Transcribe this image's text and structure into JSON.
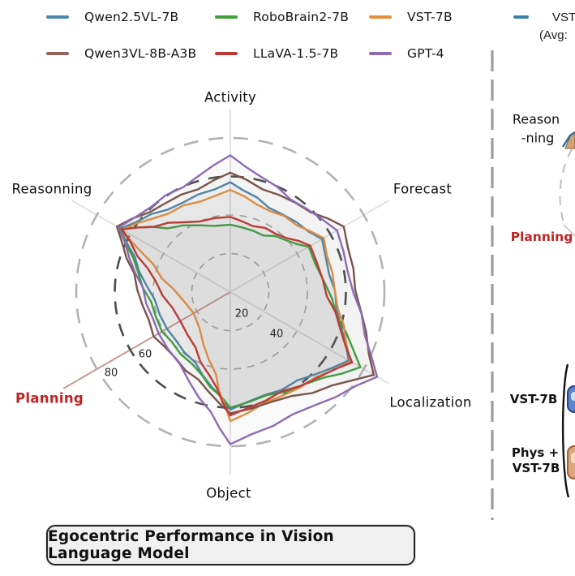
{
  "legend": {
    "items": [
      {
        "label": "Qwen2.5VL-7B",
        "color": "#4d87ad"
      },
      {
        "label": "RoboBrain2-7B",
        "color": "#3ba23b"
      },
      {
        "label": "VST-7B",
        "color": "#e69140"
      },
      {
        "label": "Qwen3VL-8B-A3B",
        "color": "#91655a"
      },
      {
        "label": "LLaVA-1.5-7B",
        "color": "#bf3a34"
      },
      {
        "label": "GPT-4",
        "color": "#8d6cb4"
      }
    ],
    "partial": {
      "label": "VST",
      "sub": "(Avg:",
      "color": "#3b7fa6"
    }
  },
  "chart_data": {
    "type": "radar",
    "title": "Egocentric Performance in Vision Language Model",
    "axes": [
      "Activity",
      "Forecast",
      "Localization",
      "Object",
      "Planning",
      "Reasonning"
    ],
    "radial_ticks": [
      20,
      40,
      60,
      80
    ],
    "scale_max": 100,
    "grid": "dashed-circles",
    "legend_position": "top",
    "highlighted_axis": "Planning",
    "series": [
      {
        "name": "Qwen2.5VL-7B",
        "color": "#4d87ad",
        "values": [
          57,
          55,
          71,
          61,
          38,
          66
        ]
      },
      {
        "name": "RoboBrain2-7B",
        "color": "#3ba23b",
        "values": [
          35,
          47,
          78,
          60,
          41,
          66
        ]
      },
      {
        "name": "VST-7B",
        "color": "#e69140",
        "values": [
          53,
          56,
          72,
          67,
          22,
          65
        ]
      },
      {
        "name": "Qwen3VL-8B-A3B",
        "color": "#7a544a",
        "values": [
          62,
          68,
          86,
          63,
          46,
          68
        ]
      },
      {
        "name": "LLaVA-1.5-7B",
        "color": "#bf3a34",
        "values": [
          39,
          48,
          73,
          64,
          30,
          65
        ]
      },
      {
        "name": "GPT-4",
        "color": "#8d6cb4",
        "values": [
          71,
          64,
          88,
          79,
          43,
          67
        ]
      }
    ]
  },
  "right_panel": {
    "reason_label_line1": "Reason",
    "reason_label_line2": "-ning",
    "planning_label": "Planning",
    "row1_label": "VST-7B",
    "row2_label_line1": "Phys +",
    "row2_label_line2": "VST-7B"
  },
  "caption": "Egocentric Performance in Vision Language Model",
  "colors": {
    "grid_light": "#a8a8a8",
    "grid_dark": "#4d4d4d",
    "grid_outer": "#b3b3b3",
    "axis_line": "#dedede",
    "planning_axis_line": "#c9908c",
    "divider": "#9c9c9c",
    "planning_text": "#c32222",
    "caption_bg": "#f0f0f0"
  }
}
